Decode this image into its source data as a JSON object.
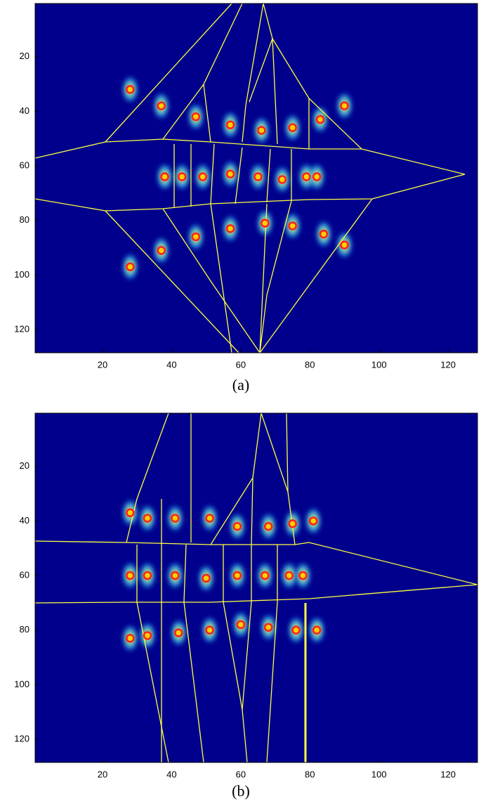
{
  "chart_data": [
    {
      "type": "scatter",
      "caption": "(a)",
      "xlim": [
        0.5,
        128.5
      ],
      "ylim": [
        128.5,
        0.5
      ],
      "xticks": [
        20,
        40,
        60,
        80,
        100,
        120
      ],
      "yticks": [
        20,
        40,
        60,
        80,
        100,
        120
      ],
      "series": [
        {
          "color": "#ff2020",
          "x": [
            28,
            37,
            47,
            57,
            66,
            75,
            83,
            90,
            38,
            43,
            49,
            57,
            65,
            72,
            79,
            82,
            28,
            37,
            47,
            57,
            67,
            75,
            84,
            90
          ],
          "y": [
            32,
            38,
            42,
            45,
            47,
            46,
            43,
            38,
            64,
            64,
            64,
            63,
            64,
            65,
            64,
            64,
            97,
            91,
            86,
            83,
            81,
            82,
            85,
            89
          ]
        }
      ]
    },
    {
      "type": "scatter",
      "caption": "(b)",
      "xlim": [
        0.5,
        128.5
      ],
      "ylim": [
        128.5,
        0.5
      ],
      "xticks": [
        20,
        40,
        60,
        80,
        100,
        120
      ],
      "yticks": [
        20,
        40,
        60,
        80,
        100,
        120
      ],
      "series": [
        {
          "color": "#ff2020",
          "x": [
            28,
            33,
            41,
            51,
            59,
            68,
            75,
            81,
            28,
            33,
            41,
            50,
            59,
            67,
            74,
            78,
            28,
            33,
            42,
            51,
            60,
            68,
            76,
            82
          ],
          "y": [
            37,
            39,
            39,
            39,
            42,
            42,
            41,
            40,
            60,
            60,
            60,
            61,
            60,
            60,
            60,
            60,
            83,
            82,
            81,
            80,
            78,
            79,
            80,
            80
          ]
        }
      ]
    }
  ]
}
